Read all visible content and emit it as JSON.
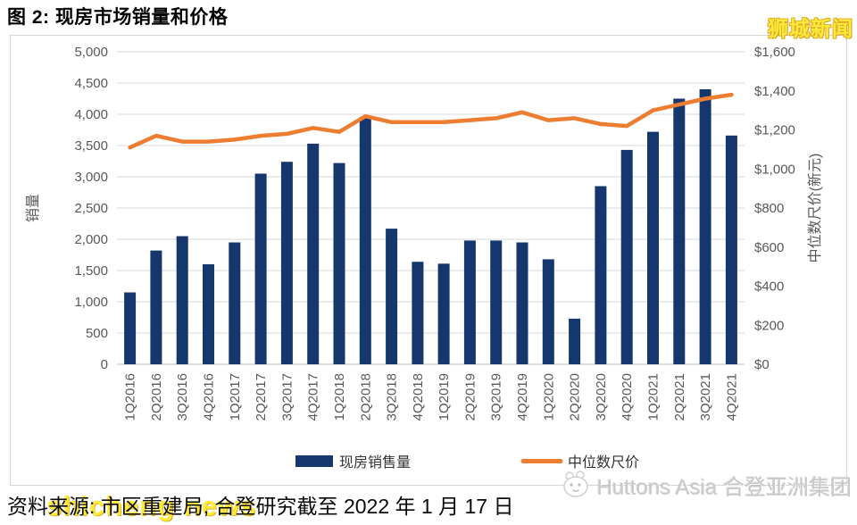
{
  "title": "图 2: 现房市场销量和价格",
  "footer": {
    "source_text": "资料来源: 市区重建局, 合登研究截至 2022 年 1 月 17 日"
  },
  "watermarks": {
    "top_right": "狮城新闻",
    "bottom_left": "shicheng news",
    "bottom_right": "Huttons Asia 合登亚洲集团"
  },
  "colors": {
    "bar": "#16376d",
    "line": "#ED7D31",
    "grid": "#d9d9d9",
    "axis_text": "#595959",
    "legend_text": "#333333",
    "watermark_yellow": "#ffe93a"
  },
  "chart_data": {
    "type": "bar",
    "title": "",
    "categories": [
      "1Q2016",
      "2Q2016",
      "3Q2016",
      "4Q2016",
      "1Q2017",
      "2Q2017",
      "3Q2017",
      "4Q2017",
      "1Q2018",
      "2Q2018",
      "3Q2018",
      "4Q2018",
      "1Q2019",
      "2Q2019",
      "3Q2019",
      "4Q2019",
      "1Q2020",
      "2Q2020",
      "3Q2020",
      "4Q2020",
      "1Q2021",
      "2Q2021",
      "3Q2021",
      "4Q2021"
    ],
    "series": [
      {
        "name": "现房销售量",
        "type": "bar",
        "yaxis": "left",
        "values": [
          1150,
          1820,
          2050,
          1600,
          1950,
          3050,
          3240,
          3530,
          3220,
          3960,
          2170,
          1640,
          1610,
          1980,
          1980,
          1950,
          1680,
          730,
          2850,
          3430,
          3720,
          4250,
          4400,
          3660
        ]
      },
      {
        "name": "中位数尺价",
        "type": "line",
        "yaxis": "right",
        "values": [
          1110,
          1170,
          1140,
          1140,
          1150,
          1170,
          1180,
          1210,
          1190,
          1270,
          1240,
          1240,
          1240,
          1250,
          1260,
          1290,
          1250,
          1260,
          1230,
          1220,
          1300,
          1330,
          1360,
          1380
        ]
      }
    ],
    "left_axis": {
      "title": "销量",
      "min": 0,
      "max": 5000,
      "step": 500
    },
    "right_axis": {
      "title": "中位数尺价(新元)",
      "min": 0,
      "max": 1600,
      "step": 200,
      "prefix": "$"
    },
    "legend_position": "bottom",
    "grid": true
  }
}
